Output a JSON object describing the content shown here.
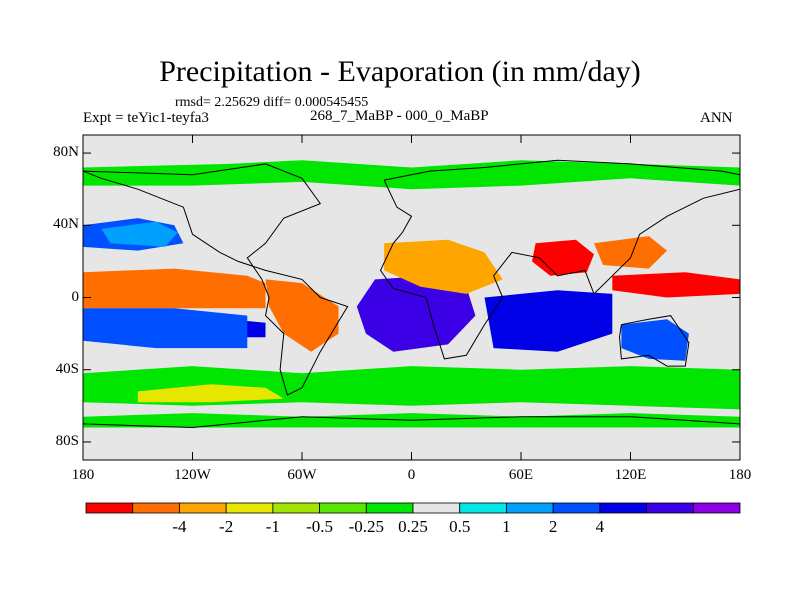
{
  "header": {
    "title": "Precipitation - Evaporation (in mm/day)",
    "subtitle": "rmsd= 2.25629 diff= 0.000545455",
    "left_label": "Expt = teYic1-teyfa3",
    "center_label": "268_7_MaBP - 000_0_MaBP",
    "right_label": "ANN"
  },
  "map": {
    "lat_range": [
      -90,
      90
    ],
    "lon_range": [
      -180,
      180
    ],
    "y_ticks": [
      "80N",
      "40N",
      "0",
      "40S",
      "80S"
    ],
    "y_tick_values": [
      80,
      40,
      0,
      -40,
      -80
    ],
    "x_ticks": [
      "180",
      "120W",
      "60W",
      "0",
      "60E",
      "120E",
      "180"
    ],
    "x_tick_values": [
      -180,
      -120,
      -60,
      0,
      60,
      120,
      180
    ],
    "background_color": "#e6e6e6"
  },
  "colorbar": {
    "colors": [
      "#ff0000",
      "#ff6e00",
      "#ffa500",
      "#e6e600",
      "#a0e600",
      "#5ae600",
      "#00e600",
      "#e6e6e6",
      "#00e6e6",
      "#00a0ff",
      "#0050ff",
      "#0000e6",
      "#3c00e6",
      "#8c00e6"
    ],
    "labels": [
      "-4",
      "-2",
      "-1",
      "-0.5",
      "-0.25",
      "0.25",
      "0.5",
      "1",
      "2",
      "4"
    ]
  },
  "chart_data": {
    "type": "heatmap",
    "title": "Precipitation - Evaporation (in mm/day)",
    "units": "mm/day",
    "levels": [
      -4,
      -2,
      -1,
      -0.5,
      -0.25,
      0.25,
      0.5,
      1,
      2,
      4
    ],
    "regions_lonlat": [
      {
        "name": "north-polar-band",
        "level": 7,
        "poly": [
          [
            -180,
            90
          ],
          [
            180,
            90
          ],
          [
            180,
            70
          ],
          [
            -180,
            70
          ]
        ]
      },
      {
        "name": "arctic-mid",
        "level": 6,
        "poly": [
          [
            -180,
            72
          ],
          [
            -100,
            74
          ],
          [
            -60,
            76
          ],
          [
            0,
            72
          ],
          [
            60,
            76
          ],
          [
            120,
            74
          ],
          [
            180,
            72
          ],
          [
            180,
            62
          ],
          [
            120,
            66
          ],
          [
            60,
            62
          ],
          [
            0,
            60
          ],
          [
            -60,
            64
          ],
          [
            -120,
            62
          ],
          [
            -180,
            62
          ]
        ]
      },
      {
        "name": "npac-wet",
        "level": 10,
        "poly": [
          [
            -180,
            40
          ],
          [
            -150,
            44
          ],
          [
            -130,
            40
          ],
          [
            -125,
            30
          ],
          [
            -150,
            26
          ],
          [
            -180,
            28
          ]
        ]
      },
      {
        "name": "npac-east-wet",
        "level": 9,
        "poly": [
          [
            -170,
            38
          ],
          [
            -140,
            42
          ],
          [
            -128,
            36
          ],
          [
            -135,
            28
          ],
          [
            -165,
            30
          ]
        ]
      },
      {
        "name": "itcz-pacific-dry",
        "level": 0,
        "poly": [
          [
            -180,
            8
          ],
          [
            -140,
            10
          ],
          [
            -100,
            6
          ],
          [
            -80,
            4
          ],
          [
            -80,
            -2
          ],
          [
            -120,
            0
          ],
          [
            -160,
            -2
          ],
          [
            -180,
            0
          ]
        ]
      },
      {
        "name": "itcz-pacific-orange",
        "level": 1,
        "poly": [
          [
            -180,
            14
          ],
          [
            -130,
            16
          ],
          [
            -90,
            12
          ],
          [
            -80,
            8
          ],
          [
            -80,
            -6
          ],
          [
            -120,
            -6
          ],
          [
            -180,
            -6
          ]
        ]
      },
      {
        "name": "spac-wet-band",
        "level": 11,
        "poly": [
          [
            -180,
            -8
          ],
          [
            -120,
            -10
          ],
          [
            -80,
            -14
          ],
          [
            -80,
            -22
          ],
          [
            -130,
            -22
          ],
          [
            -180,
            -18
          ]
        ]
      },
      {
        "name": "spac-blue",
        "level": 10,
        "poly": [
          [
            -180,
            -6
          ],
          [
            -130,
            -6
          ],
          [
            -90,
            -10
          ],
          [
            -90,
            -28
          ],
          [
            -140,
            -28
          ],
          [
            -180,
            -24
          ]
        ]
      },
      {
        "name": "southern-green",
        "level": 6,
        "poly": [
          [
            -180,
            -42
          ],
          [
            -120,
            -38
          ],
          [
            -60,
            -42
          ],
          [
            0,
            -38
          ],
          [
            60,
            -40
          ],
          [
            120,
            -38
          ],
          [
            180,
            -40
          ],
          [
            180,
            -62
          ],
          [
            120,
            -60
          ],
          [
            60,
            -58
          ],
          [
            0,
            -60
          ],
          [
            -60,
            -58
          ],
          [
            -120,
            -60
          ],
          [
            -180,
            -58
          ]
        ]
      },
      {
        "name": "southern-yellow",
        "level": 3,
        "poly": [
          [
            -150,
            -52
          ],
          [
            -110,
            -48
          ],
          [
            -80,
            -50
          ],
          [
            -70,
            -56
          ],
          [
            -110,
            -58
          ],
          [
            -150,
            -58
          ]
        ]
      },
      {
        "name": "atlantic-wet",
        "level": 12,
        "poly": [
          [
            -20,
            10
          ],
          [
            10,
            12
          ],
          [
            30,
            6
          ],
          [
            35,
            -10
          ],
          [
            20,
            -26
          ],
          [
            -10,
            -30
          ],
          [
            -25,
            -20
          ],
          [
            -30,
            -5
          ]
        ]
      },
      {
        "name": "indian-wet",
        "level": 11,
        "poly": [
          [
            40,
            0
          ],
          [
            80,
            4
          ],
          [
            110,
            2
          ],
          [
            110,
            -20
          ],
          [
            80,
            -30
          ],
          [
            45,
            -28
          ]
        ]
      },
      {
        "name": "india-dry",
        "level": 0,
        "poly": [
          [
            68,
            30
          ],
          [
            90,
            32
          ],
          [
            100,
            24
          ],
          [
            96,
            14
          ],
          [
            76,
            12
          ],
          [
            66,
            20
          ]
        ]
      },
      {
        "name": "asia-orange",
        "level": 1,
        "poly": [
          [
            100,
            30
          ],
          [
            130,
            34
          ],
          [
            140,
            26
          ],
          [
            130,
            16
          ],
          [
            105,
            18
          ]
        ]
      },
      {
        "name": "west-pacific-dry",
        "level": 0,
        "poly": [
          [
            110,
            12
          ],
          [
            150,
            14
          ],
          [
            180,
            10
          ],
          [
            180,
            2
          ],
          [
            140,
            0
          ],
          [
            110,
            4
          ]
        ]
      },
      {
        "name": "south-america-dry",
        "level": 1,
        "poly": [
          [
            -80,
            10
          ],
          [
            -60,
            8
          ],
          [
            -40,
            -5
          ],
          [
            -40,
            -20
          ],
          [
            -55,
            -30
          ],
          [
            -70,
            -20
          ],
          [
            -78,
            -5
          ]
        ]
      },
      {
        "name": "africa-orange",
        "level": 2,
        "poly": [
          [
            -15,
            30
          ],
          [
            20,
            32
          ],
          [
            40,
            25
          ],
          [
            50,
            10
          ],
          [
            30,
            2
          ],
          [
            5,
            6
          ],
          [
            -15,
            15
          ]
        ]
      },
      {
        "name": "australia-blue",
        "level": 10,
        "poly": [
          [
            115,
            -15
          ],
          [
            140,
            -12
          ],
          [
            152,
            -20
          ],
          [
            150,
            -35
          ],
          [
            130,
            -34
          ],
          [
            115,
            -28
          ]
        ]
      },
      {
        "name": "antarctic-coast",
        "level": 6,
        "poly": [
          [
            -180,
            -66
          ],
          [
            -120,
            -64
          ],
          [
            -60,
            -66
          ],
          [
            0,
            -64
          ],
          [
            60,
            -66
          ],
          [
            120,
            -64
          ],
          [
            180,
            -66
          ],
          [
            180,
            -72
          ],
          [
            -180,
            -72
          ]
        ]
      },
      {
        "name": "antarctic-band",
        "level": 7,
        "poly": [
          [
            -180,
            -72
          ],
          [
            180,
            -72
          ],
          [
            180,
            -90
          ],
          [
            -180,
            -90
          ]
        ]
      }
    ],
    "coastlines_lonlat": [
      [
        [
          -180,
          70
        ],
        [
          -120,
          68
        ],
        [
          -80,
          74
        ],
        [
          -60,
          66
        ],
        [
          -50,
          52
        ],
        [
          -70,
          44
        ],
        [
          -80,
          30
        ],
        [
          -90,
          22
        ],
        [
          -82,
          10
        ],
        [
          -78,
          0
        ],
        [
          -80,
          -10
        ],
        [
          -70,
          -20
        ],
        [
          -72,
          -40
        ],
        [
          -68,
          -54
        ],
        [
          -60,
          -50
        ],
        [
          -50,
          -30
        ],
        [
          -38,
          -10
        ],
        [
          -35,
          -5
        ],
        [
          -50,
          0
        ],
        [
          -60,
          10
        ],
        [
          -80,
          15
        ],
        [
          -95,
          20
        ],
        [
          -105,
          25
        ],
        [
          -120,
          35
        ],
        [
          -125,
          50
        ],
        [
          -150,
          60
        ],
        [
          -170,
          66
        ],
        [
          -180,
          70
        ]
      ],
      [
        [
          -15,
          65
        ],
        [
          10,
          70
        ],
        [
          40,
          72
        ],
        [
          80,
          76
        ],
        [
          120,
          74
        ],
        [
          170,
          70
        ],
        [
          180,
          68
        ],
        [
          180,
          60
        ],
        [
          160,
          55
        ],
        [
          140,
          45
        ],
        [
          125,
          35
        ],
        [
          120,
          22
        ],
        [
          110,
          12
        ],
        [
          100,
          2
        ],
        [
          95,
          15
        ],
        [
          80,
          12
        ],
        [
          70,
          22
        ],
        [
          55,
          25
        ],
        [
          45,
          12
        ],
        [
          50,
          0
        ],
        [
          40,
          -15
        ],
        [
          30,
          -32
        ],
        [
          18,
          -34
        ],
        [
          12,
          -15
        ],
        [
          8,
          0
        ],
        [
          -10,
          5
        ],
        [
          -17,
          15
        ],
        [
          -10,
          30
        ],
        [
          -5,
          36
        ],
        [
          0,
          45
        ],
        [
          -8,
          50
        ],
        [
          -15,
          65
        ]
      ],
      [
        [
          115,
          -15
        ],
        [
          130,
          -12
        ],
        [
          142,
          -10
        ],
        [
          152,
          -25
        ],
        [
          150,
          -38
        ],
        [
          140,
          -38
        ],
        [
          130,
          -32
        ],
        [
          115,
          -34
        ],
        [
          114,
          -22
        ],
        [
          115,
          -15
        ]
      ],
      [
        [
          -180,
          -70
        ],
        [
          -120,
          -72
        ],
        [
          -60,
          -66
        ],
        [
          0,
          -68
        ],
        [
          60,
          -66
        ],
        [
          120,
          -66
        ],
        [
          180,
          -70
        ]
      ]
    ]
  }
}
